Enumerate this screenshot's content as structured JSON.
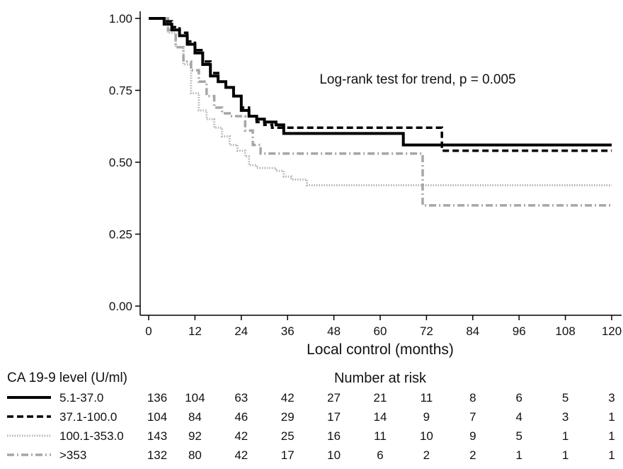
{
  "chart_data": {
    "type": "line",
    "subtype": "kaplan-meier step curves",
    "annotation": "Log-rank test for trend, p = 0.005",
    "xlabel": "Local control (months)",
    "ylabel": "",
    "xlim": [
      0,
      120
    ],
    "ylim": [
      0,
      1
    ],
    "x_ticks": [
      "0",
      "12",
      "24",
      "36",
      "48",
      "60",
      "72",
      "84",
      "96",
      "108",
      "120"
    ],
    "y_ticks": [
      "0.00",
      "0.25",
      "0.50",
      "0.75",
      "1.00"
    ],
    "grid": false,
    "legend_title": "CA 19-9 level (U/ml)",
    "risk_table_title": "Number at risk",
    "series": [
      {
        "name": "5.1-37.0",
        "color": "#000000",
        "style": "solid",
        "risk": [
          "136",
          "104",
          "63",
          "42",
          "27",
          "21",
          "11",
          "8",
          "6",
          "5",
          "3"
        ],
        "points": [
          [
            0,
            1
          ],
          [
            3,
            1
          ],
          [
            4,
            0.98
          ],
          [
            6,
            0.96
          ],
          [
            8,
            0.94
          ],
          [
            10,
            0.91
          ],
          [
            12,
            0.88
          ],
          [
            14,
            0.84
          ],
          [
            16,
            0.8
          ],
          [
            18,
            0.78
          ],
          [
            20,
            0.76
          ],
          [
            22,
            0.73
          ],
          [
            24,
            0.68
          ],
          [
            26,
            0.66
          ],
          [
            28,
            0.65
          ],
          [
            30,
            0.64
          ],
          [
            33,
            0.63
          ],
          [
            35,
            0.6
          ],
          [
            66,
            0.6
          ],
          [
            66,
            0.56
          ],
          [
            120,
            0.56
          ]
        ]
      },
      {
        "name": "37.1-100.0",
        "color": "#000000",
        "style": "dash",
        "risk": [
          "104",
          "84",
          "46",
          "29",
          "17",
          "14",
          "9",
          "7",
          "4",
          "3",
          "1"
        ],
        "points": [
          [
            0,
            1
          ],
          [
            3,
            1
          ],
          [
            4,
            0.99
          ],
          [
            6,
            0.97
          ],
          [
            8,
            0.95
          ],
          [
            10,
            0.92
          ],
          [
            12,
            0.89
          ],
          [
            14,
            0.85
          ],
          [
            16,
            0.81
          ],
          [
            18,
            0.78
          ],
          [
            20,
            0.76
          ],
          [
            22,
            0.73
          ],
          [
            24,
            0.69
          ],
          [
            26,
            0.66
          ],
          [
            28,
            0.64
          ],
          [
            30,
            0.63
          ],
          [
            32,
            0.62
          ],
          [
            35,
            0.62
          ],
          [
            76,
            0.62
          ],
          [
            76,
            0.54
          ],
          [
            120,
            0.54
          ]
        ]
      },
      {
        "name": "100.1-353.0",
        "color": "#b3b3b3",
        "style": "dot",
        "risk": [
          "143",
          "92",
          "42",
          "25",
          "16",
          "11",
          "10",
          "9",
          "5",
          "1",
          "1"
        ],
        "points": [
          [
            0,
            1
          ],
          [
            3,
            1
          ],
          [
            5,
            0.95
          ],
          [
            7,
            0.9
          ],
          [
            9,
            0.84
          ],
          [
            11,
            0.74
          ],
          [
            13,
            0.68
          ],
          [
            15,
            0.65
          ],
          [
            17,
            0.62
          ],
          [
            19,
            0.59
          ],
          [
            21,
            0.56
          ],
          [
            23,
            0.54
          ],
          [
            25,
            0.52
          ],
          [
            26,
            0.49
          ],
          [
            28,
            0.48
          ],
          [
            33,
            0.47
          ],
          [
            35,
            0.45
          ],
          [
            37,
            0.44
          ],
          [
            41,
            0.42
          ],
          [
            120,
            0.42
          ]
        ]
      },
      {
        "name": ">353",
        "color": "#a6a6a6",
        "style": "dashdot",
        "risk": [
          "132",
          "80",
          "42",
          "17",
          "10",
          "6",
          "2",
          "2",
          "1",
          "1",
          "1"
        ],
        "points": [
          [
            0,
            1
          ],
          [
            3,
            1
          ],
          [
            5,
            0.96
          ],
          [
            7,
            0.9
          ],
          [
            9,
            0.85
          ],
          [
            11,
            0.82
          ],
          [
            13,
            0.78
          ],
          [
            15,
            0.73
          ],
          [
            17,
            0.69
          ],
          [
            19,
            0.67
          ],
          [
            21,
            0.66
          ],
          [
            23,
            0.66
          ],
          [
            25,
            0.61
          ],
          [
            27,
            0.56
          ],
          [
            29,
            0.53
          ],
          [
            70,
            0.53
          ],
          [
            71,
            0.35
          ],
          [
            120,
            0.35
          ]
        ]
      }
    ]
  }
}
